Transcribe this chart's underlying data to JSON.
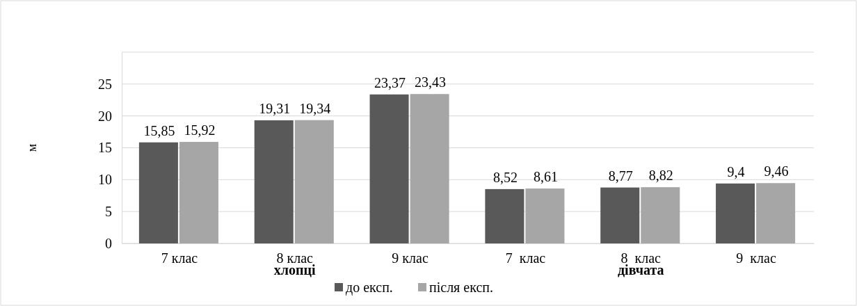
{
  "chart_data": {
    "type": "bar",
    "ylabel": "м",
    "categories": [
      "7 клас",
      "8 клас",
      "9 клас",
      "7  клас",
      "8  клас",
      "9  клас"
    ],
    "series": [
      {
        "name": "до експ.",
        "color": "#595959",
        "values": [
          15.85,
          19.31,
          23.37,
          8.52,
          8.77,
          9.4
        ],
        "value_labels": [
          "15,85",
          "19,31",
          "23,37",
          "8,52",
          "8,77",
          "9,4"
        ]
      },
      {
        "name": "після експ.",
        "color": "#a6a6a6",
        "values": [
          15.92,
          19.34,
          23.43,
          8.61,
          8.82,
          9.46
        ],
        "value_labels": [
          "15,92",
          "19,34",
          "23,43",
          "8,61",
          "8,82",
          "9,46"
        ]
      }
    ],
    "ylim": [
      0,
      30
    ],
    "yticks": [
      0,
      5,
      10,
      15,
      20,
      25,
      {
        "value": 30,
        "label": null
      }
    ],
    "grid": "y",
    "legend": "bottom",
    "annotations": [
      "хлопці",
      "дівчата"
    ]
  }
}
